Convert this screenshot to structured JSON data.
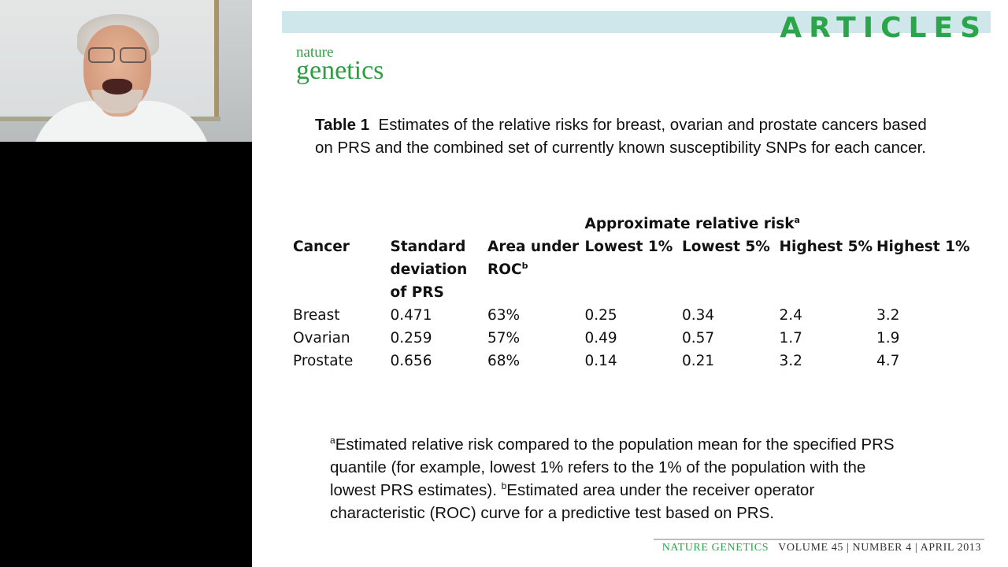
{
  "slide": {
    "header_label": "ARTICLES",
    "logo": {
      "line1": "nature",
      "line2": "genetics"
    },
    "caption": {
      "lead": "Table 1",
      "text": "Estimates of the relative risks for breast, ovarian and prostate cancers based on PRS and the combined set of currently known susceptibility SNPs for each cancer."
    },
    "table": {
      "group_header": "Approximate relative risk",
      "group_header_sup": "a",
      "columns": {
        "cancer": "Cancer",
        "sd_line1": "Standard",
        "sd_line2": "deviation",
        "sd_line3": "of PRS",
        "auc_line1": "Area under",
        "auc_line2": "ROC",
        "auc_sup": "b",
        "lowest1": "Lowest 1%",
        "lowest5": "Lowest 5%",
        "highest5": "Highest 5%",
        "highest1": "Highest 1%"
      },
      "rows": [
        {
          "cancer": "Breast",
          "sd": "0.471",
          "auc": "63%",
          "lowest1": "0.25",
          "lowest5": "0.34",
          "highest5": "2.4",
          "highest1": "3.2"
        },
        {
          "cancer": "Ovarian",
          "sd": "0.259",
          "auc": "57%",
          "lowest1": "0.49",
          "lowest5": "0.57",
          "highest5": "1.7",
          "highest1": "1.9"
        },
        {
          "cancer": "Prostate",
          "sd": "0.656",
          "auc": "68%",
          "lowest1": "0.14",
          "lowest5": "0.21",
          "highest5": "3.2",
          "highest1": "4.7"
        }
      ]
    },
    "footnote": {
      "sup_a": "a",
      "text_a": "Estimated relative risk compared to the population mean for the specified PRS quantile (for example, lowest 1% refers to the 1% of the population with the lowest PRS estimates).",
      "sup_b": "b",
      "text_b": "Estimated area under the receiver operator characteristic (ROC) curve for a predictive test based on PRS."
    },
    "footer": {
      "journal": "NATURE GENETICS",
      "issue": "VOLUME 45 | NUMBER 4 | APRIL 2013"
    }
  },
  "colors": {
    "accent_green": "#2aa54a",
    "header_band": "#cfe6ea",
    "left_pane": "#000000"
  }
}
